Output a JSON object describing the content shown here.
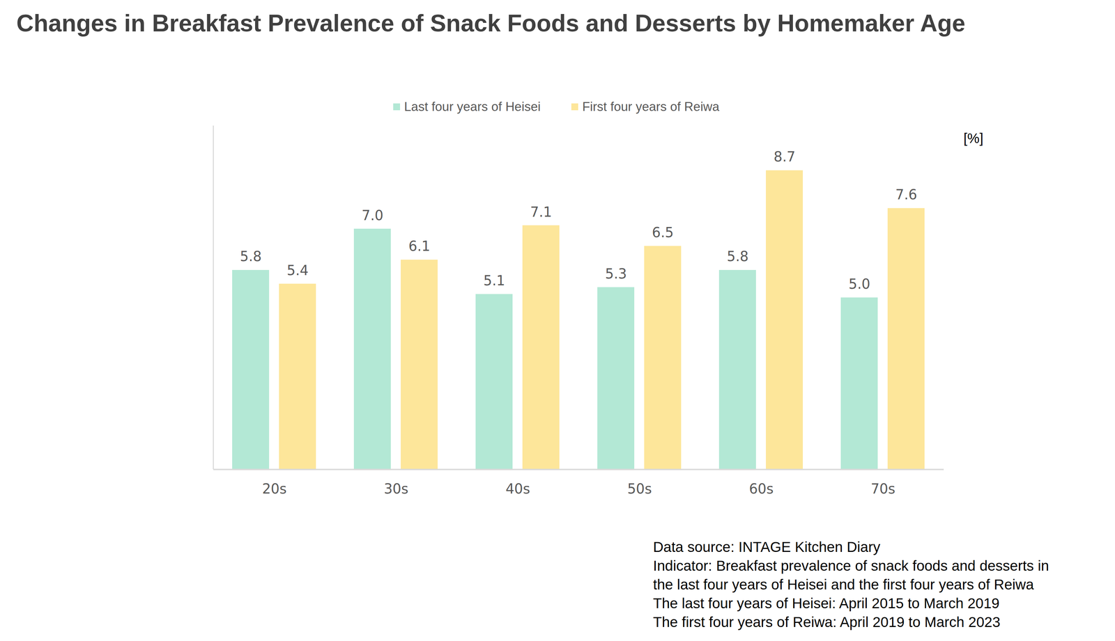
{
  "chart_data": {
    "type": "bar",
    "title": "Changes in Breakfast Prevalence of Snack Foods and Desserts by Homemaker Age",
    "categories": [
      "20s",
      "30s",
      "40s",
      "50s",
      "60s",
      "70s"
    ],
    "series": [
      {
        "name": "Last four years of Heisei",
        "color": "#b3e8d5",
        "values": [
          5.8,
          7.0,
          5.1,
          5.3,
          5.8,
          5.0
        ],
        "value_labels": [
          "5.8",
          "7.0",
          "5.1",
          "5.3",
          "5.8",
          "5.0"
        ]
      },
      {
        "name": "First four years of Reiwa",
        "color": "#fde69a",
        "values": [
          5.4,
          6.1,
          7.1,
          6.5,
          8.7,
          7.6
        ],
        "value_labels": [
          "5.4",
          "6.1",
          "7.1",
          "6.5",
          "8.7",
          "7.6"
        ]
      }
    ],
    "ylabel": "[%]",
    "ylim": [
      0,
      10
    ],
    "tick_labels": "x",
    "grid": false,
    "data_labels": true,
    "legend": "top",
    "notes": [
      "Data source: INTAGE Kitchen Diary",
      "Indicator: Breakfast prevalence of snack foods and desserts in",
      "the last four years of Heisei and the first four years of Reiwa",
      "The last four years of Heisei: April 2015 to March 2019",
      "The first four years of Reiwa: April 2019 to March 2023"
    ]
  }
}
